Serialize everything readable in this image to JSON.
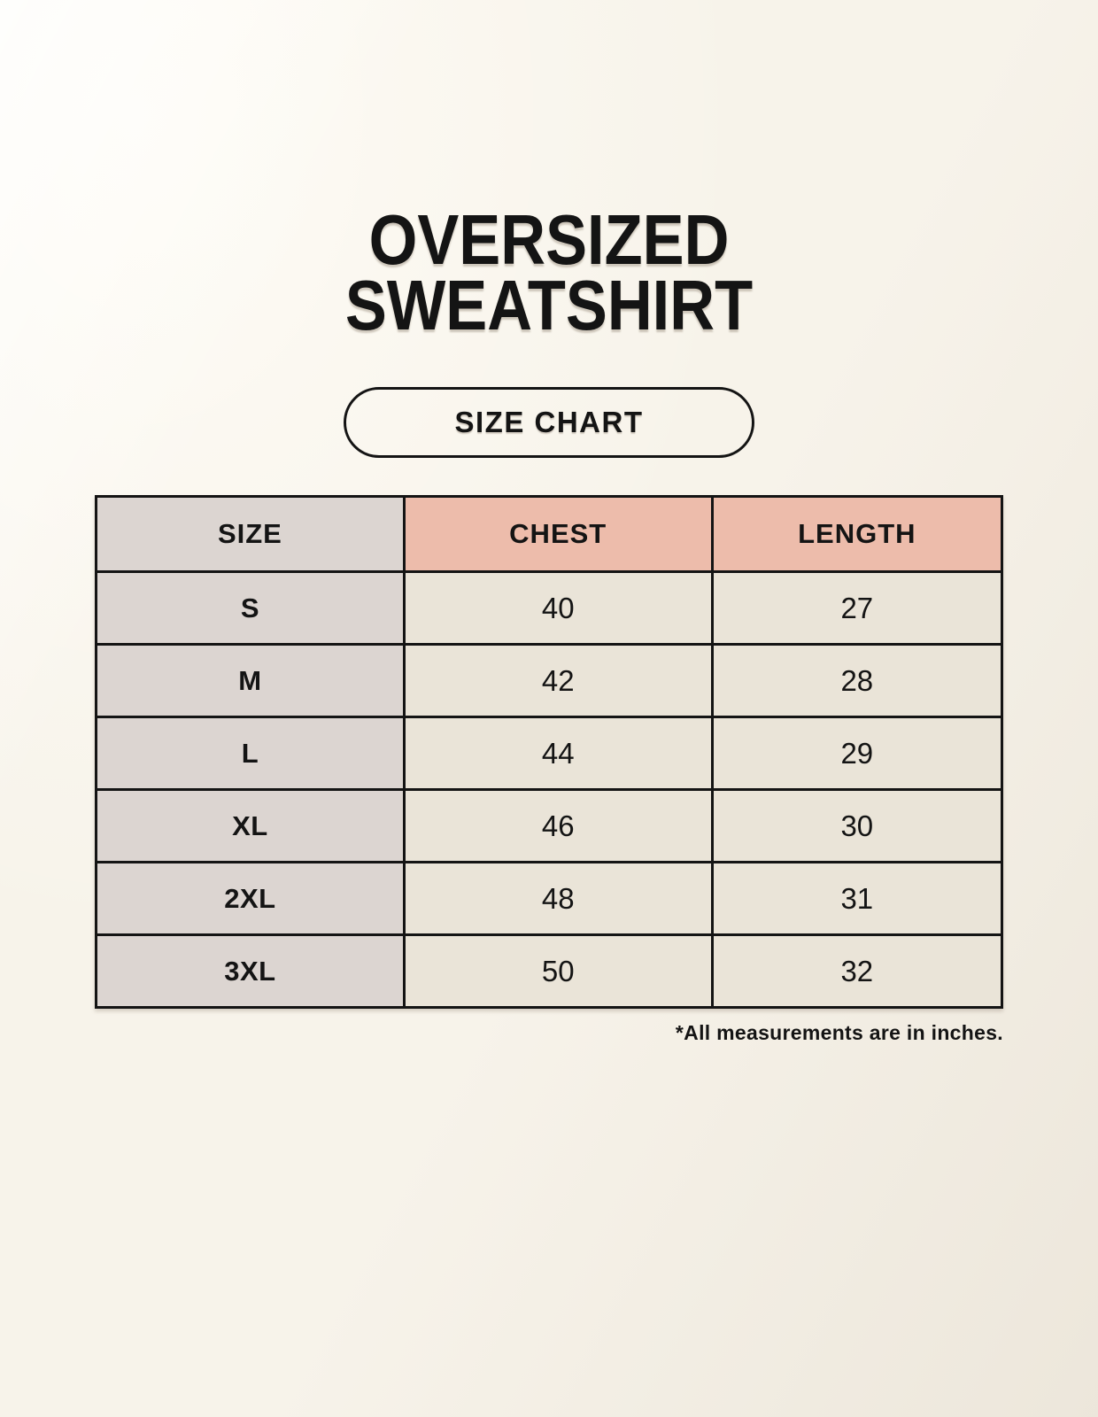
{
  "header": {
    "title_lines": [
      "OVERSIZED",
      "SWEATSHIRT"
    ],
    "badge_label": "SIZE CHART"
  },
  "chart_data": {
    "type": "table",
    "title": "OVERSIZED SWEATSHIRT SIZE CHART",
    "columns": [
      "SIZE",
      "CHEST",
      "LENGTH"
    ],
    "rows": [
      [
        "S",
        "40",
        "27"
      ],
      [
        "M",
        "42",
        "28"
      ],
      [
        "L",
        "44",
        "29"
      ],
      [
        "XL",
        "46",
        "30"
      ],
      [
        "2XL",
        "48",
        "31"
      ],
      [
        "3XL",
        "50",
        "32"
      ]
    ],
    "units_note": "*All measurements are in inches.",
    "legend_position": "none",
    "grid": "full-borders"
  },
  "colors": {
    "background": "#f7f3ea",
    "header_accent": "#edbcab",
    "size_column": "#dcd5d1",
    "cell": "#eae4d8",
    "border": "#141414",
    "text": "#141414"
  }
}
